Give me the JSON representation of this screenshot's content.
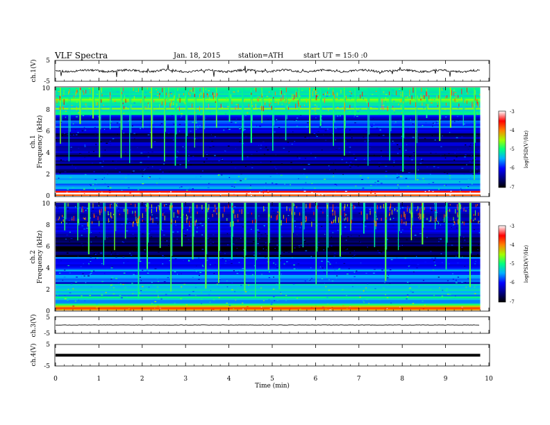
{
  "header": {
    "title": "VLF  Spectra",
    "date": "Jan. 18, 2015",
    "station": "station=ATH",
    "start": "start  UT  =   15:0  :0"
  },
  "x_axis": {
    "label": "Time  (min)",
    "ticks": [
      "0",
      "1",
      "2",
      "3",
      "4",
      "5",
      "6",
      "7",
      "8",
      "9",
      "10"
    ]
  },
  "panels": {
    "ch1_wave": {
      "ylabel": "ch.1(V)",
      "ticks": [
        "5",
        "-5"
      ]
    },
    "ch1_spec": {
      "ylabel_channel": "ch.1",
      "ylabel_freq": "Frequency  (kHz)",
      "ticks": [
        "10",
        "8",
        "6",
        "4",
        "2",
        "0"
      ]
    },
    "ch2_spec": {
      "ylabel_channel": "ch.2",
      "ylabel_freq": "Frequency  (kHz)",
      "ticks": [
        "10",
        "8",
        "6",
        "4",
        "2",
        "0"
      ]
    },
    "ch3_wave": {
      "ylabel": "ch.3(V)",
      "ticks": [
        "5",
        "-5"
      ]
    },
    "ch4_wave": {
      "ylabel": "ch.4(V)",
      "ticks": [
        "5",
        "-5"
      ]
    }
  },
  "colorbar": {
    "label": "log(PSD(V²/Hz)",
    "ticks": [
      "-3",
      "-4",
      "-5",
      "-6",
      "-7"
    ]
  },
  "chart_data": [
    {
      "type": "line",
      "name": "ch.1 waveform",
      "ylabel": "ch.1(V)",
      "xlabel": "Time  (min)",
      "xlim": [
        0,
        10
      ],
      "ylim": [
        -5,
        5
      ],
      "data_end_min": 9.8,
      "mean_level_V": 0.0
    },
    {
      "type": "heatmap",
      "name": "ch.1 spectrogram",
      "ylabel": "Frequency  (kHz)",
      "xlim": [
        0,
        10
      ],
      "ylim": [
        0,
        10
      ],
      "zlim": [
        -7,
        -3
      ],
      "colorscale": "jet",
      "frequency_bands": [
        {
          "f_from": 0.0,
          "f_to": 0.5,
          "log_psd": -3.4
        },
        {
          "f_from": 0.5,
          "f_to": 2.0,
          "log_psd": -5.6
        },
        {
          "f_from": 2.0,
          "f_to": 5.8,
          "log_psd": -6.5
        },
        {
          "f_from": 5.8,
          "f_to": 7.5,
          "log_psd": -6.0
        },
        {
          "f_from": 7.5,
          "f_to": 10.0,
          "log_psd": -5.0
        }
      ],
      "spheric_bursts_min": [
        0.1,
        0.3,
        0.55,
        0.85,
        1.0,
        1.25,
        1.5,
        1.7,
        2.0,
        2.2,
        2.5,
        2.75,
        3.0,
        3.2,
        3.4,
        3.7,
        4.0,
        4.3,
        4.5,
        4.75,
        5.0,
        5.3,
        5.6,
        5.85,
        6.1,
        6.4,
        6.65,
        6.9,
        7.2,
        7.45,
        7.7,
        8.0,
        8.3,
        8.55,
        8.85,
        9.1,
        9.4,
        9.65
      ]
    },
    {
      "type": "heatmap",
      "name": "ch.2 spectrogram",
      "ylabel": "Frequency  (kHz)",
      "xlim": [
        0,
        10
      ],
      "ylim": [
        0,
        10
      ],
      "zlim": [
        -7,
        -3
      ],
      "colorscale": "jet",
      "frequency_bands": [
        {
          "f_from": 0.0,
          "f_to": 0.5,
          "log_psd": -4.0
        },
        {
          "f_from": 0.5,
          "f_to": 2.5,
          "log_psd": -5.3
        },
        {
          "f_from": 2.5,
          "f_to": 5.0,
          "log_psd": -5.9
        },
        {
          "f_from": 5.0,
          "f_to": 7.0,
          "log_psd": -6.6
        },
        {
          "f_from": 7.0,
          "f_to": 10.0,
          "log_psd": -6.2
        }
      ],
      "spheric_bursts_min": [
        0.2,
        0.5,
        0.75,
        1.1,
        1.35,
        1.6,
        1.9,
        2.1,
        2.4,
        2.65,
        2.9,
        3.15,
        3.45,
        3.75,
        4.05,
        4.35,
        4.6,
        4.9,
        5.15,
        5.45,
        5.7,
        6.0,
        6.25,
        6.55,
        6.8,
        7.1,
        7.35,
        7.6,
        7.9,
        8.2,
        8.45,
        8.75,
        9.0,
        9.3,
        9.55
      ]
    },
    {
      "type": "line",
      "name": "ch.3 waveform",
      "ylabel": "ch.3(V)",
      "xlabel": "Time  (min)",
      "xlim": [
        0,
        10
      ],
      "ylim": [
        -5,
        5
      ],
      "data_end_min": 9.8,
      "mean_level_V": 0.0
    },
    {
      "type": "line",
      "name": "ch.4 waveform",
      "ylabel": "ch.4(V)",
      "xlabel": "Time  (min)",
      "xlim": [
        0,
        10
      ],
      "ylim": [
        -5,
        5
      ],
      "data_end_min": 9.8,
      "mean_level_V": 0.0
    }
  ]
}
